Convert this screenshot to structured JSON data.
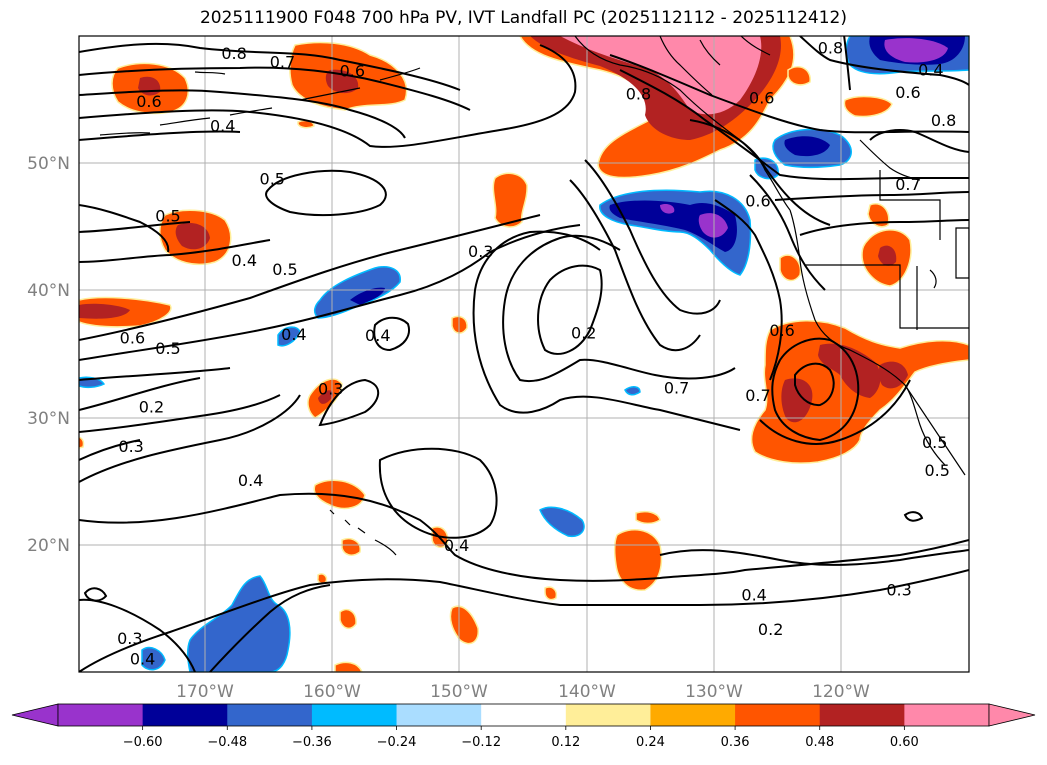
{
  "title": "2025111900 F048 700 hPa PV, IVT Landfall PC (2025112112 - 2025112412)",
  "map": {
    "extent": {
      "lon_min": -180,
      "lon_max": -110,
      "lat_min": 10,
      "lat_max": 60
    },
    "lat_ticks": [
      {
        "value": 20,
        "label": "20°N"
      },
      {
        "value": 30,
        "label": "30°N"
      },
      {
        "value": 40,
        "label": "40°N"
      },
      {
        "value": 50,
        "label": "50°N"
      }
    ],
    "lon_ticks": [
      {
        "value": -170,
        "label": "170°W"
      },
      {
        "value": -160,
        "label": "160°W"
      },
      {
        "value": -150,
        "label": "150°W"
      },
      {
        "value": -140,
        "label": "140°W"
      },
      {
        "value": -130,
        "label": "130°W"
      },
      {
        "value": -120,
        "label": "120°W"
      }
    ],
    "contour_labels": [
      {
        "text": "0.8",
        "lon": -167.8,
        "lat": 58.6
      },
      {
        "text": "0.7",
        "lon": -164.0,
        "lat": 57.9
      },
      {
        "text": "0.6",
        "lon": -158.5,
        "lat": 57.2
      },
      {
        "text": "0.6",
        "lon": -174.5,
        "lat": 54.8
      },
      {
        "text": "0.4",
        "lon": -168.7,
        "lat": 52.9
      },
      {
        "text": "0.5",
        "lon": -173.0,
        "lat": 45.8
      },
      {
        "text": "0.5",
        "lon": -164.8,
        "lat": 48.7
      },
      {
        "text": "0.4",
        "lon": -167.0,
        "lat": 42.3
      },
      {
        "text": "0.5",
        "lon": -163.8,
        "lat": 41.6
      },
      {
        "text": "0.3",
        "lon": -148.4,
        "lat": 43.0
      },
      {
        "text": "0.4",
        "lon": -163.1,
        "lat": 36.5
      },
      {
        "text": "0.4",
        "lon": -156.5,
        "lat": 36.4
      },
      {
        "text": "0.6",
        "lon": -175.8,
        "lat": 36.2
      },
      {
        "text": "0.5",
        "lon": -173.0,
        "lat": 35.4
      },
      {
        "text": "0.2",
        "lon": -140.3,
        "lat": 36.6
      },
      {
        "text": "0.7",
        "lon": -133.0,
        "lat": 32.3
      },
      {
        "text": "0.3",
        "lon": -160.2,
        "lat": 32.2
      },
      {
        "text": "0.2",
        "lon": -174.3,
        "lat": 30.8
      },
      {
        "text": "0.3",
        "lon": -175.9,
        "lat": 27.7
      },
      {
        "text": "0.4",
        "lon": -166.5,
        "lat": 25.0
      },
      {
        "text": "0.4",
        "lon": -150.3,
        "lat": 19.9
      },
      {
        "text": "0.4",
        "lon": -126.9,
        "lat": 16.0
      },
      {
        "text": "0.3",
        "lon": -115.5,
        "lat": 16.4
      },
      {
        "text": "0.2",
        "lon": -125.6,
        "lat": 13.3
      },
      {
        "text": "0.3",
        "lon": -176.0,
        "lat": 12.6
      },
      {
        "text": "0.4",
        "lon": -175.0,
        "lat": 11.0
      },
      {
        "text": "0.8",
        "lon": -136.0,
        "lat": 55.4
      },
      {
        "text": "0.6",
        "lon": -126.3,
        "lat": 55.1
      },
      {
        "text": "0.8",
        "lon": -120.9,
        "lat": 59.0
      },
      {
        "text": "0.6",
        "lon": -114.8,
        "lat": 55.5
      },
      {
        "text": "0.8",
        "lon": -112.0,
        "lat": 53.3
      },
      {
        "text": "0.7",
        "lon": -114.8,
        "lat": 48.3
      },
      {
        "text": "0.6",
        "lon": -126.6,
        "lat": 47.0
      },
      {
        "text": "0.6",
        "lon": -124.7,
        "lat": 36.8
      },
      {
        "text": "0.7",
        "lon": -126.6,
        "lat": 31.7
      },
      {
        "text": "0.4",
        "lon": -113.0,
        "lat": 57.3
      },
      {
        "text": "0.5",
        "lon": -112.7,
        "lat": 28.0
      },
      {
        "text": "0.5",
        "lon": -112.5,
        "lat": 25.8
      }
    ]
  },
  "colorbar": {
    "tick_labels": [
      "−0.60",
      "−0.48",
      "−0.36",
      "−0.24",
      "−0.12",
      "0.12",
      "0.24",
      "0.36",
      "0.48",
      "0.60"
    ],
    "under_color": "#9933cc",
    "over_color": "#ff88aa",
    "colors": [
      "#9933cc",
      "#000099",
      "#3366cc",
      "#00bbff",
      "#aaddff",
      "#ffffff",
      "#ffee99",
      "#ffaa00",
      "#ff5500",
      "#b22222",
      "#ff88aa"
    ]
  }
}
